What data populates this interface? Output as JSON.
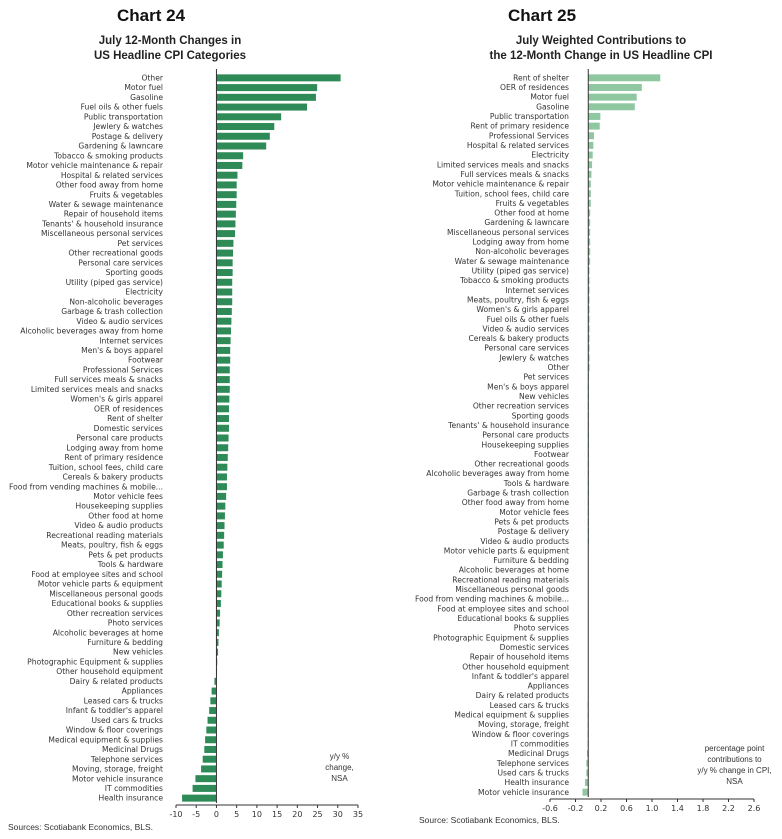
{
  "colors": {
    "left_bar": "#2e8b57",
    "right_bar": "#8fc7a1",
    "axis": "#333333"
  },
  "left": {
    "chart_number": "Chart 24",
    "title_line1": "July 12-Month Changes in",
    "title_line2": "US Headline CPI Categories",
    "note": [
      "y/y %",
      "change,",
      "NSA"
    ],
    "source": "Sources: Scotiabank Economics, BLS."
  },
  "right": {
    "chart_number": "Chart 25",
    "title_line1": "July Weighted Contributions to",
    "title_line2": "the 12-Month Change in US Headline CPI",
    "note": [
      "percentage point",
      "contributions to",
      "y/y % change in CPI,",
      "NSA"
    ],
    "source": "Source: Scotiabank Economics, BLS."
  },
  "chart_data": [
    {
      "type": "bar",
      "orientation": "horizontal",
      "title": "July 12-Month Changes in US Headline CPI Categories",
      "xlim": [
        -10,
        35
      ],
      "ticks": [
        "-10",
        "-5",
        "0",
        "5",
        "10",
        "15",
        "20",
        "25",
        "30",
        "35"
      ],
      "tick_values": [
        -10,
        -5,
        0,
        5,
        10,
        15,
        20,
        25,
        30,
        35
      ],
      "categories": [
        "Other",
        "Motor fuel",
        "Gasoline",
        "Fuel oils & other fuels",
        "Public transportation",
        "Jewlery & watches",
        "Postage & delivery",
        "Gardening & lawncare",
        "Tobacco & smoking products",
        "Motor vehicle maintenance & repair",
        "Hospital & related services",
        "Other food away from home",
        "Fruits & vegetables",
        "Water & sewage maintenance",
        "Repair of household items",
        "Tenants' & household insurance",
        "Miscellaneous personal services",
        "Pet services",
        "Other recreational goods",
        "Personal care services",
        "Sporting goods",
        "Utility (piped gas service)",
        "Electricity",
        "Non-alcoholic beverages",
        "Garbage & trash collection",
        "Video & audio services",
        "Alcoholic beverages away from home",
        "Internet services",
        "Men's & boys apparel",
        "Footwear",
        "Professional Services",
        "Full services meals & snacks",
        "Limited services meals and snacks",
        "Women's & girls apparel",
        "OER of residences",
        "Rent of shelter",
        "Domestic services",
        "Personal care products",
        "Lodging away from home",
        "Rent of primary residence",
        "Tuition, school fees, child care",
        "Cereals & bakery products",
        "Food from vending machines & mobile...",
        "Motor vehicle fees",
        "Housekeeping supplies",
        "Other food at home",
        "Video & audio products",
        "Recreational reading materials",
        "Meats, poultry, fish & eggs",
        "Pets & pet products",
        "Tools & hardware",
        "Food at employee sites and school",
        "Motor vehicle parts & equipment",
        "Miscellaneous personal goods",
        "Educational books & supplies",
        "Other recreation services",
        "Photo services",
        "Alcoholic beverages at home",
        "Furniture & bedding",
        "New vehicles",
        "Photographic Equipment & supplies",
        "Other household equipment",
        "Dairy & related products",
        "Appliances",
        "Leased cars & trucks",
        "Infant & toddler's apparel",
        "Used cars & trucks",
        "Window & floor coverings",
        "Medical equipment & supplies",
        "Medicinal Drugs",
        "Telephone services",
        "Moving, storage, freight",
        "Motor vehicle insurance",
        "IT commodities",
        "Health insurance"
      ],
      "values": [
        30.7,
        24.9,
        24.6,
        22.4,
        16.0,
        14.3,
        13.2,
        12.3,
        6.6,
        6.4,
        5.2,
        5.0,
        5.0,
        4.9,
        4.8,
        4.7,
        4.6,
        4.2,
        4.1,
        4.0,
        4.0,
        3.9,
        3.9,
        3.9,
        3.8,
        3.7,
        3.6,
        3.5,
        3.4,
        3.4,
        3.3,
        3.3,
        3.3,
        3.2,
        3.1,
        3.1,
        3.1,
        3.0,
        2.9,
        2.8,
        2.7,
        2.6,
        2.6,
        2.4,
        2.2,
        2.1,
        2.0,
        1.9,
        1.8,
        1.6,
        1.5,
        1.4,
        1.3,
        1.2,
        1.1,
        0.9,
        0.8,
        0.6,
        0.5,
        0.4,
        0.2,
        0.1,
        -0.5,
        -1.2,
        -1.5,
        -1.8,
        -2.2,
        -2.5,
        -2.8,
        -3.0,
        -3.4,
        -3.8,
        -5.2,
        -5.9,
        -8.5
      ],
      "xlabel": "",
      "ylabel": ""
    },
    {
      "type": "bar",
      "orientation": "horizontal",
      "title": "July Weighted Contributions to the 12-Month Change in US Headline CPI",
      "xlim": [
        -0.6,
        2.6
      ],
      "ticks": [
        "-0.6",
        "-0.2",
        "0.2",
        "0.6",
        "1.0",
        "1.4",
        "1.8",
        "2.2",
        "2.6"
      ],
      "tick_values": [
        -0.6,
        -0.2,
        0.2,
        0.6,
        1.0,
        1.4,
        1.8,
        2.2,
        2.6
      ],
      "categories": [
        "Rent of shelter",
        "OER of residences",
        "Motor fuel",
        "Gasoline",
        "Public transportation",
        "Rent of primary residence",
        "Professional Services",
        "Hospital & related services",
        "Electricity",
        "Limited services meals and snacks",
        "Full services meals & snacks",
        "Motor vehicle maintenance & repair",
        "Tuition, school fees, child care",
        "Fruits & vegetables",
        "Other food at home",
        "Gardening & lawncare",
        "Miscellaneous personal services",
        "Lodging away from home",
        "Non-alcoholic beverages",
        "Water & sewage maintenance",
        "Utility (piped gas service)",
        "Tobacco & smoking products",
        "Internet services",
        "Meats, poultry, fish & eggs",
        "Women's & girls apparel",
        "Fuel oils & other fuels",
        "Video & audio services",
        "Cereals & bakery products",
        "Personal care services",
        "Jewlery & watches",
        "Other",
        "Pet services",
        "Men's & boys apparel",
        "New vehicles",
        "Other recreation services",
        "Sporting goods",
        "Tenants' & household insurance",
        "Personal care products",
        "Housekeeping supplies",
        "Footwear",
        "Other recreational goods",
        "Alcoholic beverages away from home",
        "Tools & hardware",
        "Garbage & trash collection",
        "Other food away from home",
        "Motor vehicle fees",
        "Pets & pet products",
        "Postage & delivery",
        "Video & audio products",
        "Motor vehicle parts & equipment",
        "Furniture & bedding",
        "Alcoholic beverages at home",
        "Recreational reading materials",
        "Miscellaneous personal goods",
        "Food from vending machines & mobile...",
        "Food at employee sites and school",
        "Educational books & supplies",
        "Photo services",
        "Photographic Equipment & supplies",
        "Domestic services",
        "Repair of household items",
        "Other household equipment",
        "Infant & toddler's apparel",
        "Appliances",
        "Dairy & related products",
        "Leased cars & trucks",
        "Medical equipment & supplies",
        "Moving, storage, freight",
        "Window & floor coverings",
        "IT commodities",
        "Medicinal Drugs",
        "Telephone services",
        "Used cars & trucks",
        "Health insurance",
        "Motor vehicle insurance"
      ],
      "values": [
        1.13,
        0.84,
        0.76,
        0.73,
        0.19,
        0.18,
        0.09,
        0.08,
        0.07,
        0.06,
        0.05,
        0.04,
        0.04,
        0.04,
        0.03,
        0.03,
        0.03,
        0.03,
        0.03,
        0.03,
        0.02,
        0.02,
        0.02,
        0.02,
        0.02,
        0.02,
        0.02,
        0.02,
        0.02,
        0.02,
        0.02,
        0.01,
        0.01,
        0.01,
        0.01,
        0.01,
        0.01,
        0.01,
        0.01,
        0.01,
        0.01,
        0.01,
        0.01,
        0.01,
        0.01,
        0.01,
        0.01,
        0.01,
        0.01,
        0.0,
        0.0,
        0.0,
        0.0,
        0.0,
        0.0,
        0.0,
        0.0,
        0.0,
        0.0,
        0.0,
        0.0,
        0.0,
        0.0,
        0.0,
        0.0,
        -0.01,
        -0.01,
        -0.01,
        -0.01,
        -0.01,
        -0.02,
        -0.03,
        -0.03,
        -0.05,
        -0.09
      ],
      "xlabel": "",
      "ylabel": ""
    }
  ]
}
